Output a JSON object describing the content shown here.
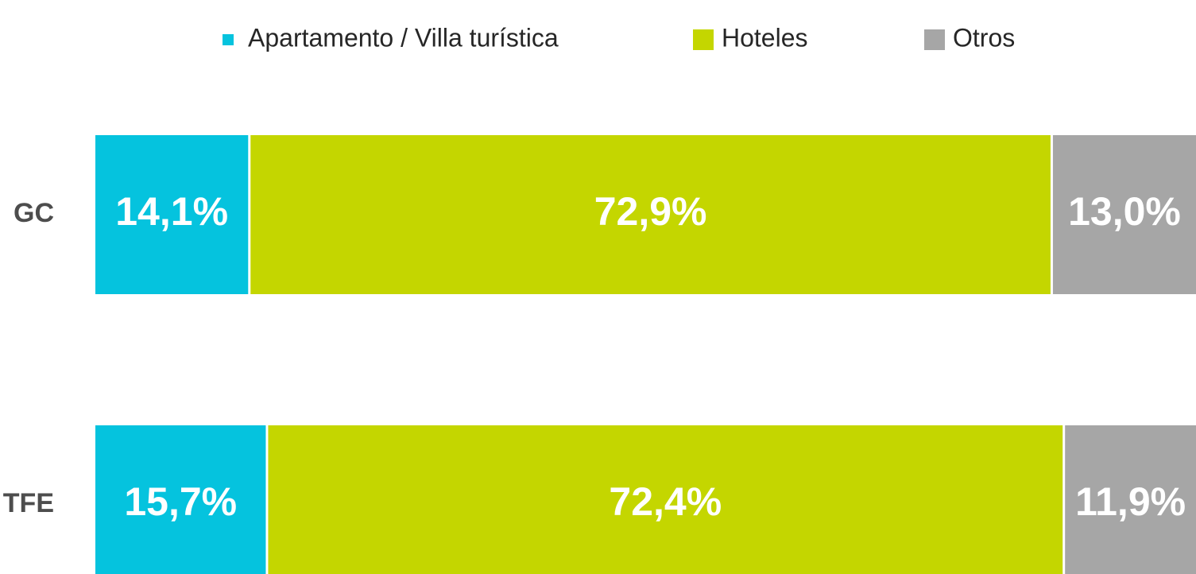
{
  "chart_data": {
    "type": "stacked_bar_horizontal",
    "categories": [
      "GC",
      "TFE"
    ],
    "series": [
      {
        "name": "Apartamento / Villa turística",
        "color": "#05c3de",
        "values": [
          14.1,
          15.7
        ],
        "value_labels": [
          "14,1%",
          "15,7%"
        ]
      },
      {
        "name": "Hoteles",
        "color": "#c4d600",
        "values": [
          72.9,
          72.4
        ],
        "value_labels": [
          "72,9%",
          "72,4%"
        ]
      },
      {
        "name": "Otros",
        "color": "#a6a6a6",
        "values": [
          13.0,
          11.9
        ],
        "value_labels": [
          "13,0%",
          "11,9%"
        ]
      }
    ],
    "xlim": [
      0,
      100
    ],
    "legend": "top"
  }
}
